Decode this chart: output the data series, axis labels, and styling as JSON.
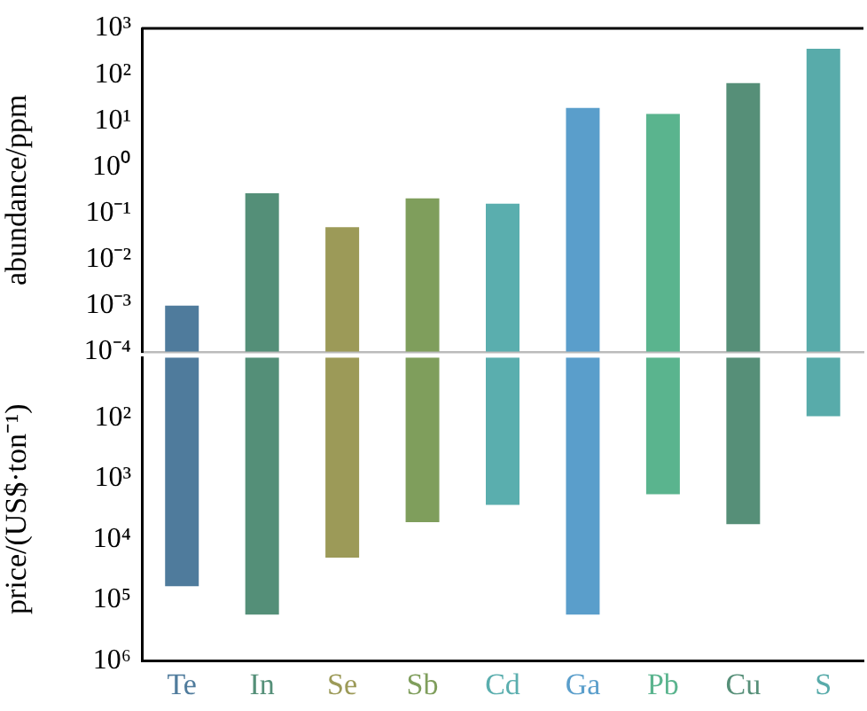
{
  "chart_data": [
    {
      "type": "bar",
      "ylabel": "abundance/ppm",
      "categories": [
        null,
        null,
        null,
        null,
        null,
        null,
        null,
        null,
        null
      ],
      "values": [
        0.001,
        0.27,
        0.05,
        0.21,
        0.16,
        19,
        14,
        65,
        360
      ],
      "colors": [
        "#4f7b9c",
        "#548f78",
        "#9c9a58",
        "#7f9e5c",
        "#5aaeae",
        "#5a9ecb",
        "#5ab48e",
        "#568f78",
        "#58abaa"
      ],
      "log": true,
      "ylim": [
        0.0001,
        1000
      ],
      "yticks": [
        {
          "value": 0.0001,
          "label": "10⁻⁴"
        },
        {
          "value": 0.001,
          "label": "10⁻³"
        },
        {
          "value": 0.01,
          "label": "10⁻²"
        },
        {
          "value": 0.1,
          "label": "10⁻¹"
        },
        {
          "value": 1,
          "label": "10⁰"
        },
        {
          "value": 10,
          "label": "10¹"
        },
        {
          "value": 100,
          "label": "10²"
        },
        {
          "value": 1000,
          "label": "10³"
        }
      ],
      "tick_labels": "y",
      "grid": false,
      "legend": false
    },
    {
      "type": "bar",
      "ylabel": "price/(US$·ton⁻¹)",
      "categories": [
        "Te",
        "In",
        "Se",
        "Sb",
        "Cd",
        "Ga",
        "Pb",
        "Cu",
        "S"
      ],
      "values": [
        59000,
        174000,
        20000,
        5200,
        2700,
        174000,
        1800,
        5600,
        93
      ],
      "colors": [
        "#4f7b9c",
        "#548f78",
        "#9c9a58",
        "#7f9e5c",
        "#5aaeae",
        "#5a9ecb",
        "#5ab48e",
        "#568f78",
        "#58abaa"
      ],
      "log": true,
      "ylim": [
        1000000,
        10
      ],
      "yticks": [
        {
          "value": 100,
          "label": "10²"
        },
        {
          "value": 1000,
          "label": "10³"
        },
        {
          "value": 10000,
          "label": "10⁴"
        },
        {
          "value": 100000,
          "label": "10⁵"
        },
        {
          "value": 1000000,
          "label": "10⁶"
        }
      ],
      "grid": false,
      "legend": false
    }
  ]
}
